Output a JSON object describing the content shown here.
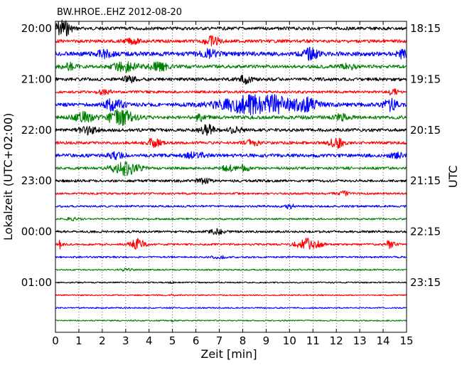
{
  "chart_data": {
    "type": "line",
    "title": "BW.HROE..EHZ 2012-08-20",
    "xlabel": "Zeit  [min]",
    "ylabel_left": "Lokalzeit (UTC+02:00)",
    "ylabel_right": "UTC",
    "xlim": [
      0,
      15
    ],
    "x_ticks": [
      "0",
      "1",
      "2",
      "3",
      "4",
      "5",
      "6",
      "7",
      "8",
      "9",
      "10",
      "11",
      "12",
      "13",
      "14",
      "15"
    ],
    "grid": "vertical dotted",
    "left_tick_labels": [
      "20:00",
      "21:00",
      "22:00",
      "23:00",
      "00:00",
      "01:00"
    ],
    "right_tick_labels": [
      "18:15",
      "19:15",
      "20:15",
      "21:15",
      "22:15",
      "23:15"
    ],
    "trace_count": 24,
    "color_cycle": [
      "#000000",
      "#ff0000",
      "#0000ff",
      "#008000"
    ]
  }
}
